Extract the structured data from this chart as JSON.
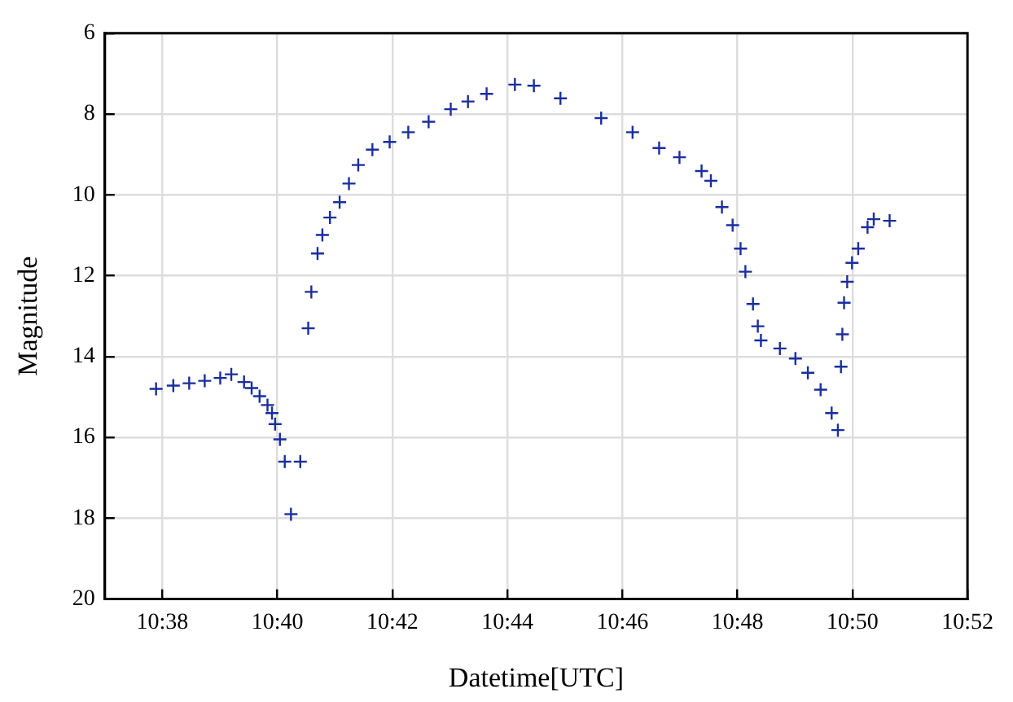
{
  "chart_data": {
    "type": "scatter",
    "xlabel": "Datetime[UTC]",
    "ylabel": "Magnitude",
    "x": [
      10.6315,
      10.6365,
      10.6411,
      10.6456,
      10.6501,
      10.6533,
      10.657,
      10.6592,
      10.6615,
      10.6638,
      10.6651,
      10.666,
      10.6674,
      10.6688,
      10.6706,
      10.6733,
      10.6756,
      10.6765,
      10.6783,
      10.6797,
      10.6819,
      10.6847,
      10.6874,
      10.6901,
      10.6942,
      10.6992,
      10.7046,
      10.7105,
      10.7169,
      10.7219,
      10.7273,
      10.7355,
      10.741,
      10.7487,
      10.7605,
      10.7696,
      10.7773,
      10.7832,
      10.7896,
      10.7923,
      10.7955,
      10.7986,
      10.8009,
      10.8023,
      10.8045,
      10.8059,
      10.8068,
      10.8123,
      10.8168,
      10.8204,
      10.8241,
      10.8273,
      10.8291,
      10.83,
      10.8304,
      10.8309,
      10.8318,
      10.8332,
      10.835,
      10.8377,
      10.8395,
      10.8441
    ],
    "series": [
      {
        "color": "#1a2e9e",
        "values": [
          14.8,
          14.72,
          14.66,
          14.6,
          14.53,
          14.44,
          14.63,
          14.78,
          14.98,
          15.2,
          15.4,
          15.67,
          16.05,
          16.6,
          17.9,
          16.6,
          13.3,
          12.4,
          11.45,
          10.99,
          10.56,
          10.18,
          9.72,
          9.26,
          8.88,
          8.69,
          8.45,
          8.19,
          7.88,
          7.69,
          7.5,
          7.27,
          7.3,
          7.61,
          8.1,
          8.45,
          8.84,
          9.07,
          9.41,
          9.65,
          10.3,
          10.75,
          11.33,
          11.9,
          12.7,
          13.25,
          13.6,
          13.8,
          14.05,
          14.4,
          14.82,
          15.4,
          15.82,
          14.25,
          13.45,
          12.67,
          12.15,
          11.68,
          11.33,
          10.8,
          10.6,
          10.64
        ]
      }
    ],
    "xlim": [
      10.616667,
      10.866667
    ],
    "xticks": [
      {
        "value": 10.633333,
        "label": "10:38"
      },
      {
        "value": 10.666667,
        "label": "10:40"
      },
      {
        "value": 10.7,
        "label": "10:42"
      },
      {
        "value": 10.733333,
        "label": "10:44"
      },
      {
        "value": 10.766667,
        "label": "10:46"
      },
      {
        "value": 10.8,
        "label": "10:48"
      },
      {
        "value": 10.833333,
        "label": "10:50"
      },
      {
        "value": 10.866667,
        "label": "10:52"
      }
    ],
    "ylim": [
      20,
      6
    ],
    "yticks": [
      6,
      8,
      10,
      12,
      14,
      16,
      18,
      20
    ],
    "grid": true,
    "marker": "cross",
    "legend": false
  }
}
